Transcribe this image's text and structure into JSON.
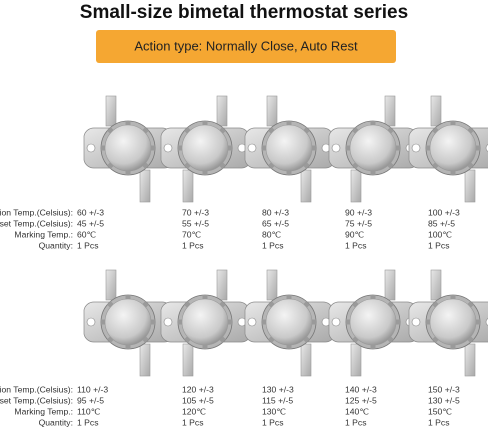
{
  "title": "Small-size bimetal thermostat series",
  "badge": "Action type: Normally Close, Auto Rest",
  "row_labels": [
    "Action Temp.(Celsius):",
    "Reset  Temp.(Celsius):",
    "Marking Temp.:",
    "Quantity:"
  ],
  "items": [
    {
      "action": "60 +/-3",
      "reset": "45 +/-5",
      "marking": "60℃",
      "quantity": "1 Pcs"
    },
    {
      "action": "70 +/-3",
      "reset": "55 +/-5",
      "marking": "70℃",
      "quantity": "1 Pcs"
    },
    {
      "action": "80 +/-3",
      "reset": "65 +/-5",
      "marking": "80℃",
      "quantity": "1 Pcs"
    },
    {
      "action": "90 +/-3",
      "reset": "75 +/-5",
      "marking": "90℃",
      "quantity": "1 Pcs"
    },
    {
      "action": "100 +/-3",
      "reset": "85 +/-5",
      "marking": "100℃",
      "quantity": "1 Pcs"
    },
    {
      "action": "110 +/-3",
      "reset": "95 +/-5",
      "marking": "110℃",
      "quantity": "1 Pcs"
    },
    {
      "action": "120 +/-3",
      "reset": "105 +/-5",
      "marking": "120℃",
      "quantity": "1 Pcs"
    },
    {
      "action": "130 +/-3",
      "reset": "115 +/-5",
      "marking": "130℃",
      "quantity": "1 Pcs"
    },
    {
      "action": "140 +/-3",
      "reset": "125 +/-5",
      "marking": "140℃",
      "quantity": "1 Pcs"
    },
    {
      "action": "150 +/-3",
      "reset": "130 +/-5",
      "marking": "150℃",
      "quantity": "1 Pcs"
    }
  ]
}
